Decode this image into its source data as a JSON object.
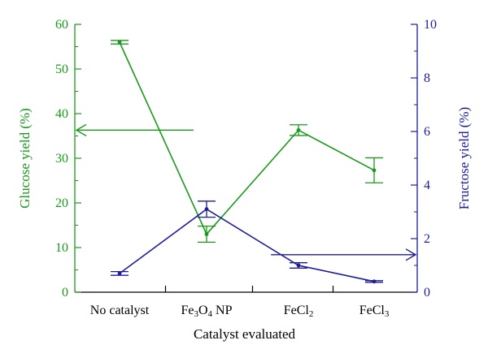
{
  "chart_data": {
    "type": "line",
    "title": "",
    "xlabel": "Catalyst evaluated",
    "categories": [
      {
        "main": "No catalyst",
        "parts": [
          {
            "t": "No catalyst"
          }
        ]
      },
      {
        "main": "Fe3O4 NP",
        "parts": [
          {
            "t": "Fe"
          },
          {
            "t": "3",
            "sub": true
          },
          {
            "t": "O"
          },
          {
            "t": "4",
            "sub": true
          },
          {
            "t": " NP"
          }
        ]
      },
      {
        "main": "FeCl2",
        "parts": [
          {
            "t": "FeCl"
          },
          {
            "t": "2",
            "sub": true
          }
        ]
      },
      {
        "main": "FeCl3",
        "parts": [
          {
            "t": "FeCl"
          },
          {
            "t": "3",
            "sub": true
          }
        ]
      }
    ],
    "y_left": {
      "label": "Glucose yield (%)",
      "min": 0,
      "max": 60,
      "ticks": [
        0,
        10,
        20,
        30,
        40,
        50,
        60
      ],
      "color": "#1a9a1a"
    },
    "y_right": {
      "label": "Fructose yield (%)",
      "min": 0,
      "max": 10,
      "ticks": [
        0,
        2,
        4,
        6,
        8,
        10
      ],
      "color": "#1c1c9c"
    },
    "series": [
      {
        "name": "Glucose yield (%)",
        "axis": "left",
        "color": "#1a9a1a",
        "values": [
          56.0,
          13.0,
          36.3,
          27.3
        ],
        "errors": [
          0.4,
          1.8,
          1.2,
          2.8
        ]
      },
      {
        "name": "Fructose yield (%)",
        "axis": "right",
        "color": "#1c1c9c",
        "values": [
          0.7,
          3.1,
          1.0,
          0.4
        ],
        "errors": [
          0.07,
          0.3,
          0.1,
          0.03
        ]
      }
    ],
    "annotations": [
      {
        "name": "left-axis-arrow",
        "points_to": "left",
        "series_axis": "left",
        "y": 36.3,
        "x_from": 0.85,
        "x_to": -0.06
      },
      {
        "name": "right-axis-arrow",
        "points_to": "right",
        "series_axis": "right",
        "y": 1.4,
        "x_from": 1.7,
        "x_to": 3.0
      }
    ]
  }
}
